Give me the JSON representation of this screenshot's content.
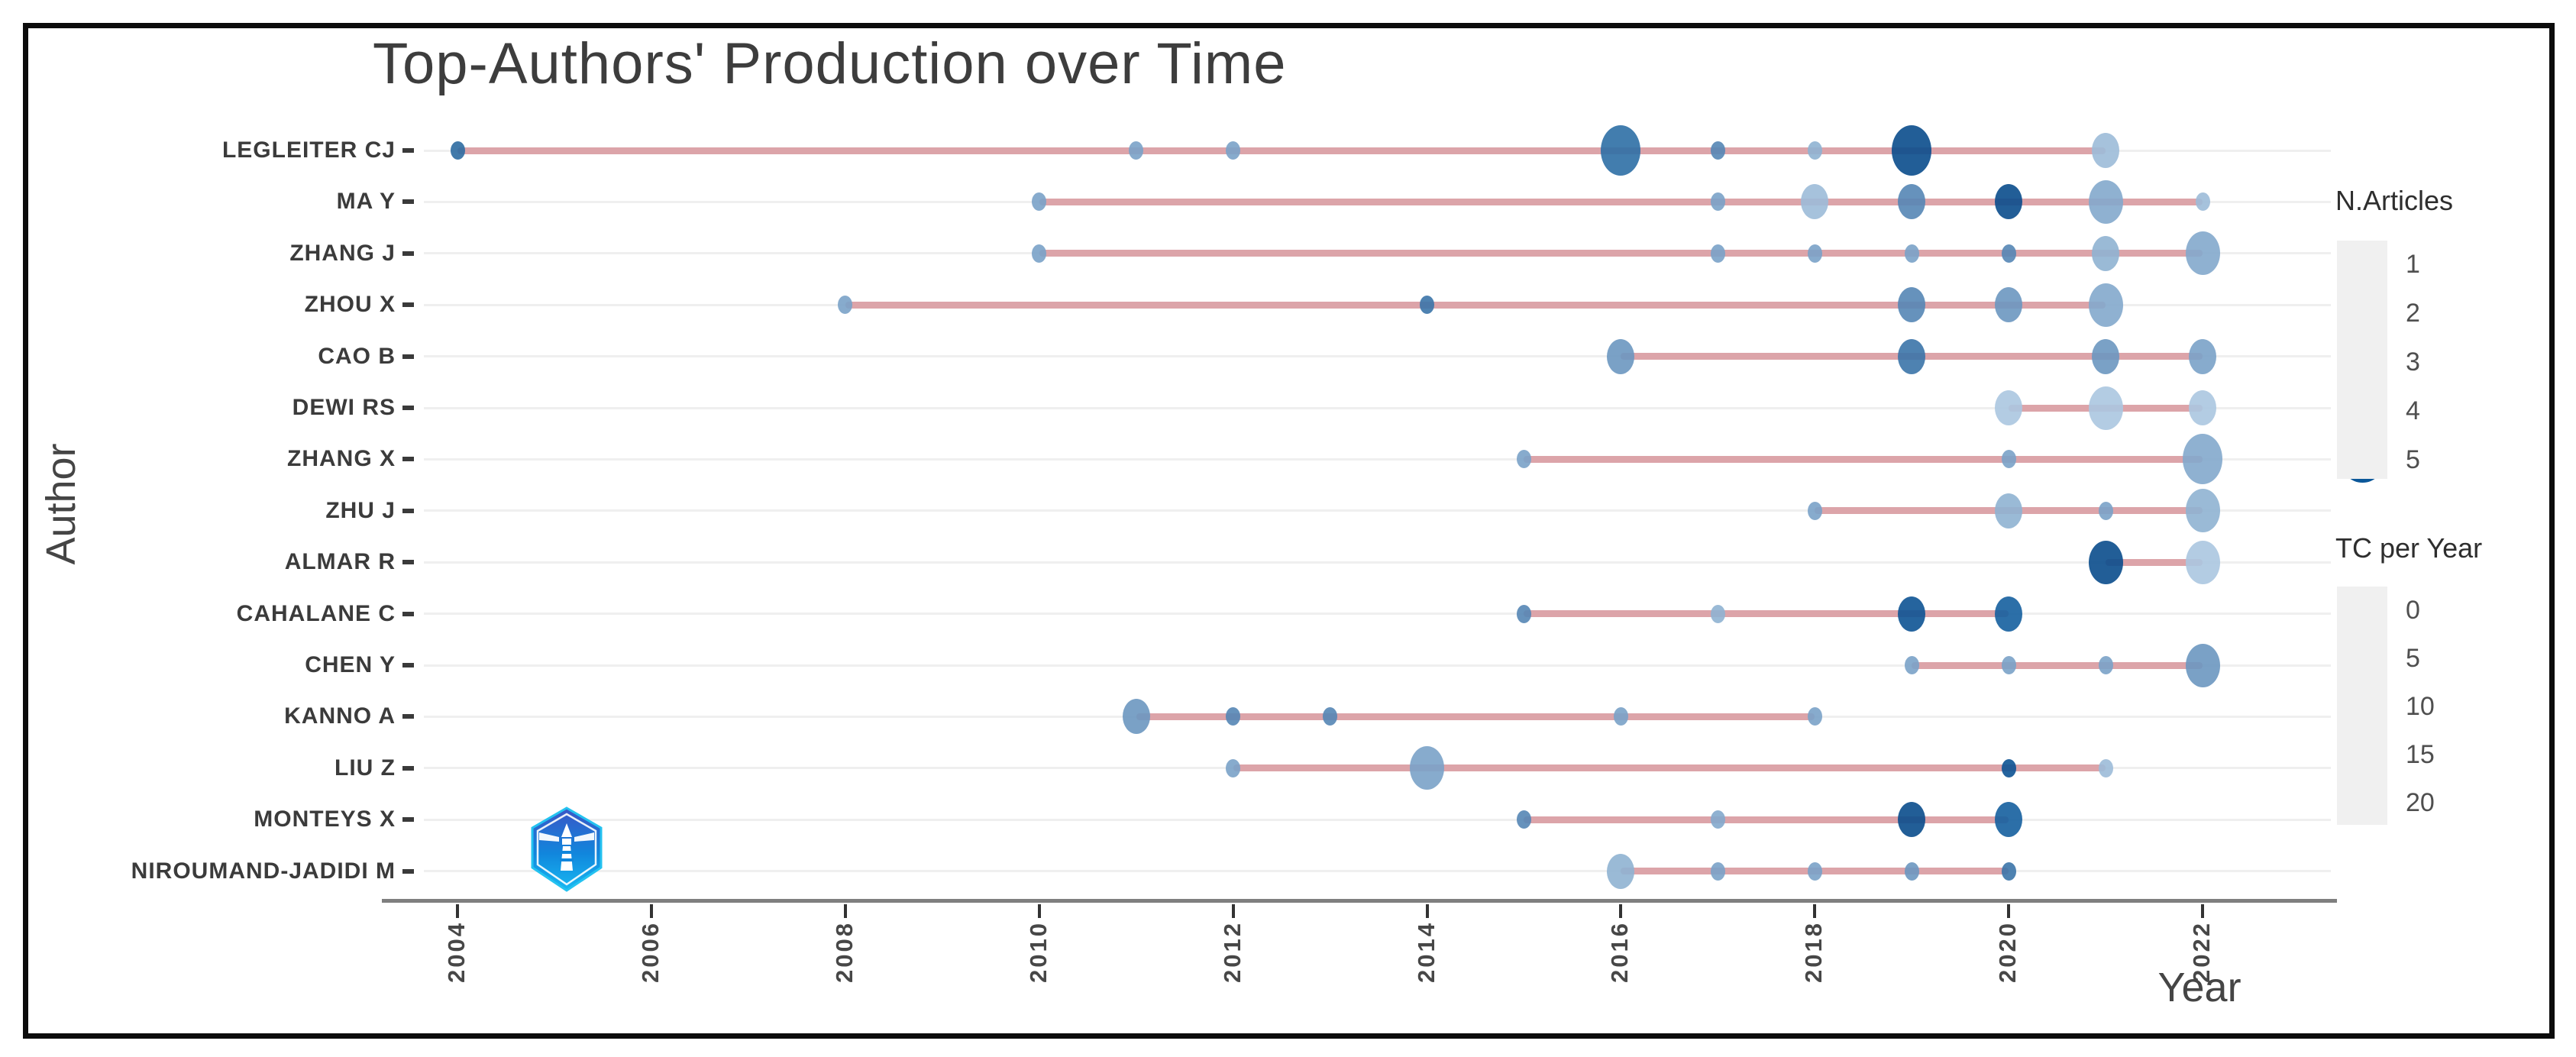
{
  "title": "Top-Authors' Production over Time",
  "x_axis": {
    "label": "Year"
  },
  "y_axis": {
    "label": "Author"
  },
  "legends": {
    "articles": {
      "title": "N.Articles",
      "items": [
        {
          "label": "1",
          "n": 1
        },
        {
          "label": "2",
          "n": 2
        },
        {
          "label": "3",
          "n": 3
        },
        {
          "label": "4",
          "n": 4
        },
        {
          "label": "5",
          "n": 5
        }
      ],
      "dot_color": "#0b5799"
    },
    "tc": {
      "title": "TC per Year",
      "items": [
        {
          "label": "0",
          "color": "#a9c3dc"
        },
        {
          "label": "5",
          "color": "#7ba3c8"
        },
        {
          "label": "10",
          "color": "#417bb0"
        },
        {
          "label": "15",
          "color": "#1b639f"
        },
        {
          "label": "20",
          "color": "#0b5394"
        }
      ]
    }
  },
  "colors": {
    "timeline": "#dca4a9",
    "grid": "#efefef",
    "axis_line": "#7f7f7f",
    "tick": "#333333",
    "title_text": "#3d3d3d",
    "frame_border": "#0c0c0c"
  },
  "watermark": {
    "icon": "lighthouse-hexagon-logo",
    "gradient_top": "#3b55c6",
    "gradient_bottom": "#18b9f2"
  },
  "chart_data": {
    "type": "scatter",
    "title": "Top-Authors' Production over Time",
    "xlabel": "Year",
    "ylabel": "Author",
    "x_range": [
      2003.4,
      2022.9
    ],
    "x_ticks": [
      2004,
      2006,
      2008,
      2010,
      2012,
      2014,
      2016,
      2018,
      2020,
      2022
    ],
    "size_encoding": "N.Articles (1-5)",
    "color_encoding": "TC per Year (0-20, light to dark blue)",
    "legend_position": "right",
    "grid": "horizontal-only",
    "authors": [
      {
        "name": "LEGLEITER CJ",
        "line": [
          2004,
          2021
        ],
        "points": [
          {
            "year": 2004,
            "n": 1,
            "tc": 12,
            "color": "#2d6ba1"
          },
          {
            "year": 2011,
            "n": 1,
            "tc": 5,
            "color": "#7aa2c8"
          },
          {
            "year": 2012,
            "n": 1,
            "tc": 5,
            "color": "#7aa2c8"
          },
          {
            "year": 2016,
            "n": 4,
            "tc": 10,
            "color": "#2e6fa5"
          },
          {
            "year": 2017,
            "n": 1,
            "tc": 8,
            "color": "#5586b5"
          },
          {
            "year": 2018,
            "n": 1,
            "tc": 3,
            "color": "#8fb2d2"
          },
          {
            "year": 2019,
            "n": 4,
            "tc": 20,
            "color": "#0a4c8c"
          },
          {
            "year": 2021,
            "n": 2,
            "tc": 2,
            "color": "#9cbbd8"
          }
        ]
      },
      {
        "name": "MA Y",
        "line": [
          2010,
          2022
        ],
        "points": [
          {
            "year": 2010,
            "n": 1,
            "tc": 5,
            "color": "#7aa2c8"
          },
          {
            "year": 2017,
            "n": 1,
            "tc": 5,
            "color": "#7aa2c8"
          },
          {
            "year": 2018,
            "n": 2,
            "tc": 2,
            "color": "#9cbbd8"
          },
          {
            "year": 2019,
            "n": 2,
            "tc": 8,
            "color": "#5586b5"
          },
          {
            "year": 2020,
            "n": 2,
            "tc": 20,
            "color": "#0a4c8c"
          },
          {
            "year": 2021,
            "n": 3,
            "tc": 4,
            "color": "#83a9cc"
          },
          {
            "year": 2022,
            "n": 1,
            "tc": 2,
            "color": "#9cbbd8"
          }
        ]
      },
      {
        "name": "ZHANG J",
        "line": [
          2010,
          2022
        ],
        "points": [
          {
            "year": 2010,
            "n": 1,
            "tc": 5,
            "color": "#7aa2c8"
          },
          {
            "year": 2017,
            "n": 1,
            "tc": 5,
            "color": "#7aa2c8"
          },
          {
            "year": 2018,
            "n": 1,
            "tc": 5,
            "color": "#7aa2c8"
          },
          {
            "year": 2019,
            "n": 1,
            "tc": 5,
            "color": "#7aa2c8"
          },
          {
            "year": 2020,
            "n": 1,
            "tc": 8,
            "color": "#5586b5"
          },
          {
            "year": 2021,
            "n": 2,
            "tc": 3,
            "color": "#8fb2d2"
          },
          {
            "year": 2022,
            "n": 3,
            "tc": 4,
            "color": "#83a9cc"
          }
        ]
      },
      {
        "name": "ZHOU X",
        "line": [
          2008,
          2021
        ],
        "points": [
          {
            "year": 2008,
            "n": 1,
            "tc": 5,
            "color": "#7aa2c8"
          },
          {
            "year": 2014,
            "n": 1,
            "tc": 10,
            "color": "#3b74a8"
          },
          {
            "year": 2019,
            "n": 2,
            "tc": 8,
            "color": "#5586b5"
          },
          {
            "year": 2020,
            "n": 2,
            "tc": 6,
            "color": "#6b97c0"
          },
          {
            "year": 2021,
            "n": 3,
            "tc": 4,
            "color": "#83a9cc"
          }
        ]
      },
      {
        "name": "CAO B",
        "line": [
          2016,
          2022
        ],
        "points": [
          {
            "year": 2016,
            "n": 2,
            "tc": 6,
            "color": "#6b97c0"
          },
          {
            "year": 2019,
            "n": 2,
            "tc": 10,
            "color": "#3b74a8"
          },
          {
            "year": 2021,
            "n": 2,
            "tc": 6,
            "color": "#6b97c0"
          },
          {
            "year": 2022,
            "n": 2,
            "tc": 5,
            "color": "#7aa2c8"
          }
        ]
      },
      {
        "name": "DEWI RS",
        "line": [
          2020,
          2022
        ],
        "points": [
          {
            "year": 2020,
            "n": 2,
            "tc": 0,
            "color": "#abc6e0"
          },
          {
            "year": 2021,
            "n": 3,
            "tc": 0,
            "color": "#abc6e0"
          },
          {
            "year": 2022,
            "n": 2,
            "tc": 0,
            "color": "#abc6e0"
          }
        ]
      },
      {
        "name": "ZHANG X",
        "line": [
          2015,
          2022
        ],
        "points": [
          {
            "year": 2015,
            "n": 1,
            "tc": 5,
            "color": "#7aa2c8"
          },
          {
            "year": 2020,
            "n": 1,
            "tc": 5,
            "color": "#7aa2c8"
          },
          {
            "year": 2022,
            "n": 4,
            "tc": 4,
            "color": "#83a9cc"
          }
        ]
      },
      {
        "name": "ZHU J",
        "line": [
          2018,
          2022
        ],
        "points": [
          {
            "year": 2018,
            "n": 1,
            "tc": 5,
            "color": "#7aa2c8"
          },
          {
            "year": 2020,
            "n": 2,
            "tc": 3,
            "color": "#8fb2d2"
          },
          {
            "year": 2021,
            "n": 1,
            "tc": 5,
            "color": "#7aa2c8"
          },
          {
            "year": 2022,
            "n": 3,
            "tc": 3,
            "color": "#8fb2d2"
          }
        ]
      },
      {
        "name": "ALMAR R",
        "line": [
          2021,
          2022
        ],
        "points": [
          {
            "year": 2021,
            "n": 3,
            "tc": 20,
            "color": "#0a4c8c"
          },
          {
            "year": 2022,
            "n": 3,
            "tc": 0,
            "color": "#abc6e0"
          }
        ]
      },
      {
        "name": "CAHALANE C",
        "line": [
          2015,
          2020
        ],
        "points": [
          {
            "year": 2015,
            "n": 1,
            "tc": 8,
            "color": "#5586b5"
          },
          {
            "year": 2017,
            "n": 1,
            "tc": 3,
            "color": "#8fb2d2"
          },
          {
            "year": 2019,
            "n": 2,
            "tc": 18,
            "color": "#0d5394"
          },
          {
            "year": 2020,
            "n": 2,
            "tc": 15,
            "color": "#155f9e"
          }
        ]
      },
      {
        "name": "CHEN Y",
        "line": [
          2019,
          2022
        ],
        "points": [
          {
            "year": 2019,
            "n": 1,
            "tc": 5,
            "color": "#7aa2c8"
          },
          {
            "year": 2020,
            "n": 1,
            "tc": 5,
            "color": "#7aa2c8"
          },
          {
            "year": 2021,
            "n": 1,
            "tc": 5,
            "color": "#7aa2c8"
          },
          {
            "year": 2022,
            "n": 3,
            "tc": 6,
            "color": "#6b97c0"
          }
        ]
      },
      {
        "name": "KANNO A",
        "line": [
          2011,
          2018
        ],
        "points": [
          {
            "year": 2011,
            "n": 2,
            "tc": 6,
            "color": "#6b97c0"
          },
          {
            "year": 2012,
            "n": 1,
            "tc": 8,
            "color": "#5586b5"
          },
          {
            "year": 2013,
            "n": 1,
            "tc": 8,
            "color": "#5586b5"
          },
          {
            "year": 2016,
            "n": 1,
            "tc": 5,
            "color": "#7aa2c8"
          },
          {
            "year": 2018,
            "n": 1,
            "tc": 5,
            "color": "#7aa2c8"
          }
        ]
      },
      {
        "name": "LIU Z",
        "line": [
          2012,
          2021
        ],
        "points": [
          {
            "year": 2012,
            "n": 1,
            "tc": 5,
            "color": "#7aa2c8"
          },
          {
            "year": 2014,
            "n": 3,
            "tc": 5,
            "color": "#7aa2c8"
          },
          {
            "year": 2020,
            "n": 1,
            "tc": 18,
            "color": "#0d5394"
          },
          {
            "year": 2021,
            "n": 1,
            "tc": 2,
            "color": "#9cbbd8"
          }
        ]
      },
      {
        "name": "MONTEYS X",
        "line": [
          2015,
          2020
        ],
        "points": [
          {
            "year": 2015,
            "n": 1,
            "tc": 8,
            "color": "#5586b5"
          },
          {
            "year": 2017,
            "n": 1,
            "tc": 4,
            "color": "#83a9cc"
          },
          {
            "year": 2019,
            "n": 2,
            "tc": 20,
            "color": "#0a4c8c"
          },
          {
            "year": 2020,
            "n": 2,
            "tc": 15,
            "color": "#155f9e"
          }
        ]
      },
      {
        "name": "NIROUMAND-JADIDI M",
        "line": [
          2016,
          2020
        ],
        "points": [
          {
            "year": 2016,
            "n": 2,
            "tc": 3,
            "color": "#8fb2d2"
          },
          {
            "year": 2017,
            "n": 1,
            "tc": 5,
            "color": "#7aa2c8"
          },
          {
            "year": 2018,
            "n": 1,
            "tc": 5,
            "color": "#7aa2c8"
          },
          {
            "year": 2019,
            "n": 1,
            "tc": 6,
            "color": "#6b97c0"
          },
          {
            "year": 2020,
            "n": 1,
            "tc": 10,
            "color": "#3b74a8"
          }
        ]
      }
    ]
  }
}
